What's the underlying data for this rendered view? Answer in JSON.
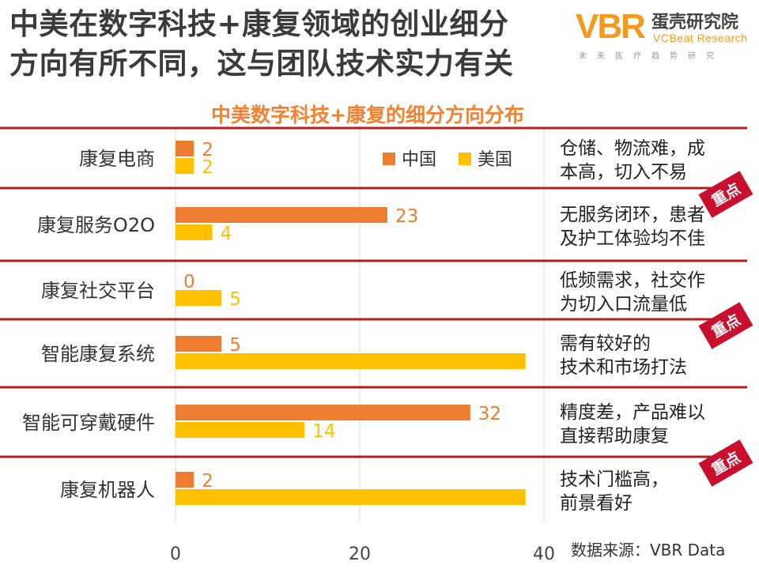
{
  "headline": {
    "line1": "中美在数字科技+康复领域的创业细分",
    "line2": "方向有所不同，这与团队技术实力有关"
  },
  "logo": {
    "mark": "VBR",
    "name_cn": "蛋壳研究院",
    "name_en": "VCBeat Research",
    "tagline": "未来医疗趋势研究"
  },
  "colors": {
    "china": "#ed7d31",
    "usa": "#ffc000",
    "rule": "#b71c1c",
    "badge": "#c8102e"
  },
  "chart_data": {
    "type": "bar",
    "orientation": "horizontal",
    "title": "中美数字科技+康复的细分方向分布",
    "categories": [
      "康复电商",
      "康复服务O2O",
      "康复社交平台",
      "智能康复系统",
      "智能可穿戴硬件",
      "康复机器人"
    ],
    "series": [
      {
        "name": "中国",
        "values": [
          2,
          23,
          0,
          5,
          32,
          2
        ]
      },
      {
        "name": "美国",
        "values": [
          2,
          4,
          5,
          38,
          14,
          38
        ]
      }
    ],
    "xlim": [
      0,
      40
    ],
    "xticks": [
      0,
      20,
      40
    ],
    "grid": true,
    "legend": "top-right",
    "notes": [
      {
        "line1": "仓储、物流难，成",
        "line2": "本高，切入不易",
        "highlight": false
      },
      {
        "line1": "无服务闭环，患者",
        "line2": "及护工体验均不佳",
        "highlight": true
      },
      {
        "line1": "低频需求，社交作",
        "line2": "为切入口流量低",
        "highlight": false
      },
      {
        "line1": "需有较好的",
        "line2": "技术和市场打法",
        "highlight": true
      },
      {
        "line1": "精度差，产品难以",
        "line2": "直接帮助康复",
        "highlight": false
      },
      {
        "line1": "技术门槛高，",
        "line2": "前景看好",
        "highlight": true
      }
    ],
    "badge_label": "重点"
  },
  "source": "数据来源：VBR Data"
}
